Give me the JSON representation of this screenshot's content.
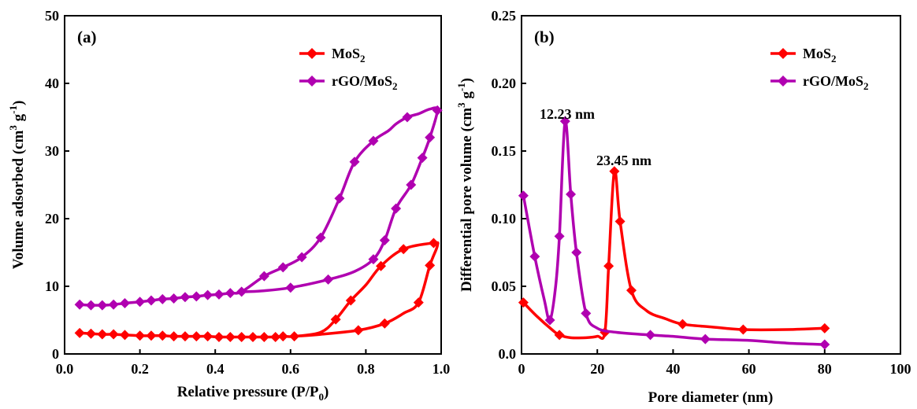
{
  "colors": {
    "mos2": "#ff0000",
    "rgo_mos2": "#b000b0"
  },
  "chart_data": [
    {
      "type": "line",
      "panel": "(a)",
      "xlabel": "Relative pressure (P/P",
      "xlabel_sub": "0",
      "xlabel_end": ")",
      "ylabel": "Volume adsorbed (cm",
      "ylabel_sup1": "3",
      "ylabel_mid": " g",
      "ylabel_sup2": "-1",
      "ylabel_end": ")",
      "xlim": [
        0,
        1.0
      ],
      "ylim": [
        0,
        50
      ],
      "xticks": [
        "0.0",
        "0.2",
        "0.4",
        "0.6",
        "0.8",
        "1.0"
      ],
      "yticks": [
        "0",
        "10",
        "20",
        "30",
        "40",
        "50"
      ],
      "xtick_values": [
        0,
        0.2,
        0.4,
        0.6,
        0.8,
        1.0
      ],
      "ytick_values": [
        0,
        10,
        20,
        30,
        40,
        50
      ],
      "legend_position": "top-right",
      "series": [
        {
          "name": "MoS",
          "name_sub": "2",
          "color_key": "mos2",
          "x": [
            0.04,
            0.07,
            0.1,
            0.13,
            0.16,
            0.2,
            0.23,
            0.26,
            0.29,
            0.32,
            0.35,
            0.38,
            0.41,
            0.44,
            0.47,
            0.5,
            0.53,
            0.56,
            0.58,
            0.61,
            0.68,
            0.72,
            0.76,
            0.8,
            0.84,
            0.9,
            0.98,
            0.99,
            0.97,
            0.94,
            0.9,
            0.85,
            0.78,
            0.68,
            0.61
          ],
          "y": [
            3.1,
            3.0,
            2.9,
            2.9,
            2.8,
            2.7,
            2.7,
            2.7,
            2.6,
            2.6,
            2.6,
            2.6,
            2.5,
            2.5,
            2.5,
            2.5,
            2.5,
            2.5,
            2.6,
            2.6,
            3.2,
            5.1,
            7.9,
            10.2,
            13.0,
            15.5,
            16.4,
            16.0,
            13.1,
            7.6,
            6.0,
            4.5,
            3.5,
            2.9,
            2.6
          ],
          "markers": [
            0,
            1,
            2,
            3,
            4,
            5,
            6,
            7,
            8,
            9,
            10,
            11,
            12,
            13,
            14,
            15,
            16,
            17,
            18,
            19,
            21,
            22,
            24,
            25,
            26,
            28,
            29,
            31,
            32
          ]
        },
        {
          "name": "rGO/MoS",
          "name_sub": "2",
          "color_key": "rgo_mos2",
          "x": [
            0.04,
            0.07,
            0.1,
            0.13,
            0.16,
            0.2,
            0.23,
            0.26,
            0.29,
            0.32,
            0.35,
            0.38,
            0.41,
            0.44,
            0.47,
            0.53,
            0.58,
            0.63,
            0.68,
            0.73,
            0.77,
            0.82,
            0.86,
            0.88,
            0.91,
            0.94,
            0.97,
            0.99,
            0.97,
            0.95,
            0.92,
            0.88,
            0.85,
            0.82,
            0.77,
            0.7,
            0.6,
            0.52,
            0.48
          ],
          "y": [
            7.3,
            7.2,
            7.2,
            7.3,
            7.5,
            7.7,
            7.9,
            8.1,
            8.2,
            8.4,
            8.5,
            8.7,
            8.8,
            9.0,
            9.2,
            11.5,
            12.8,
            14.3,
            17.2,
            23.0,
            28.4,
            31.5,
            33.0,
            34.0,
            35.0,
            35.5,
            36.2,
            36.0,
            32.0,
            29.0,
            25.0,
            21.5,
            16.8,
            14.0,
            12.2,
            11.0,
            9.8,
            9.3,
            9.2
          ],
          "markers": [
            0,
            1,
            2,
            3,
            4,
            5,
            6,
            7,
            8,
            9,
            10,
            11,
            12,
            13,
            14,
            15,
            16,
            17,
            18,
            19,
            20,
            21,
            24,
            27,
            28,
            29,
            30,
            31,
            32,
            33,
            35,
            36
          ]
        }
      ]
    },
    {
      "type": "line",
      "panel": "(b)",
      "xlabel": "Pore diameter (nm)",
      "ylabel": "Differential pore volume (cm",
      "ylabel_sup1": "3",
      "ylabel_mid": " g",
      "ylabel_sup2": "-1",
      "ylabel_end": ")",
      "xlim": [
        0,
        100
      ],
      "ylim": [
        0,
        0.25
      ],
      "xticks": [
        "0",
        "20",
        "40",
        "60",
        "80",
        "100"
      ],
      "yticks": [
        "0.0",
        "0.05",
        "0.10",
        "0.15",
        "0.20",
        "0.25"
      ],
      "xtick_values": [
        0,
        20,
        40,
        60,
        80,
        100
      ],
      "ytick_values": [
        0,
        0.05,
        0.1,
        0.15,
        0.2,
        0.25
      ],
      "legend_position": "top-right",
      "annotations": [
        {
          "text": "12.23 nm",
          "x": 12.2,
          "y": 0.178
        },
        {
          "text": "23.45 nm",
          "x": 23.5,
          "y": 0.145
        }
      ],
      "series": [
        {
          "name": "MoS",
          "name_sub": "2",
          "color_key": "mos2",
          "x": [
            0.5,
            4,
            8,
            10,
            13,
            17,
            20,
            22,
            23,
            24.5,
            26,
            29,
            33,
            38,
            42.5,
            50,
            58.5,
            70,
            80
          ],
          "y": [
            0.038,
            0.028,
            0.018,
            0.014,
            0.012,
            0.012,
            0.013,
            0.016,
            0.065,
            0.135,
            0.098,
            0.047,
            0.032,
            0.026,
            0.022,
            0.02,
            0.018,
            0.018,
            0.019
          ],
          "markers": [
            0,
            3,
            7,
            8,
            9,
            10,
            11,
            14,
            16,
            18
          ]
        },
        {
          "name": "rGO/MoS",
          "name_sub": "2",
          "color_key": "rgo_mos2",
          "x": [
            0.5,
            3.5,
            6,
            7.5,
            9,
            10,
            11.5,
            13,
            14.5,
            17,
            20,
            25,
            34,
            40,
            48.5,
            60,
            70,
            80
          ],
          "y": [
            0.117,
            0.072,
            0.04,
            0.025,
            0.05,
            0.087,
            0.172,
            0.118,
            0.075,
            0.03,
            0.019,
            0.016,
            0.014,
            0.013,
            0.011,
            0.01,
            0.008,
            0.007
          ],
          "markers": [
            0,
            1,
            3,
            5,
            6,
            7,
            8,
            9,
            12,
            14,
            17
          ]
        }
      ]
    }
  ]
}
